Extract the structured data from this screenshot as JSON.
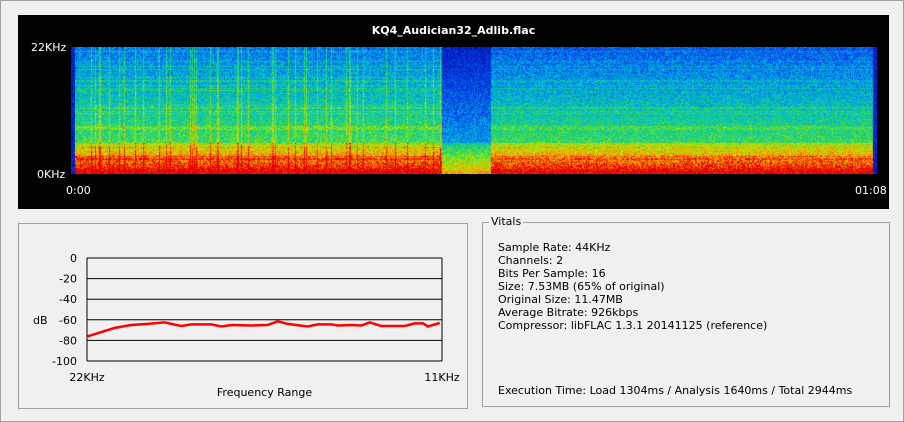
{
  "spectrogram": {
    "title": "KQ4_Audician32_Adlib.flac",
    "y_top_label": "22KHz",
    "y_bottom_label": "0KHz",
    "x_start_label": "0:00",
    "x_end_label": "01:08"
  },
  "chart_data": {
    "type": "line",
    "xlabel": "Frequency Range",
    "ylabel": "dB",
    "x_tick_labels": [
      "22KHz",
      "11KHz"
    ],
    "xlim": [
      22,
      11
    ],
    "ylim": [
      -100,
      0
    ],
    "y_ticks": [
      0,
      -20,
      -40,
      -60,
      -80,
      -100
    ],
    "y_tick_labels": [
      "0",
      "-20",
      "-40",
      "-60",
      "-80",
      "-100"
    ],
    "grid": true,
    "line_color": "#ff0000",
    "series": [
      {
        "x": [
          21.98,
          21.57,
          21.15,
          20.64,
          20.12,
          19.6,
          19.08,
          18.77,
          18.15,
          17.84,
          17.53,
          16.92,
          16.4,
          16.09,
          15.78,
          15.16,
          14.85,
          14.43,
          14.23,
          13.81,
          13.5,
          13.24,
          12.88,
          12.16,
          11.85,
          11.59,
          11.43,
          11.07
        ],
        "y": [
          -76,
          -72,
          -68,
          -65,
          -64,
          -62.5,
          -66,
          -64.5,
          -64.5,
          -66.5,
          -65,
          -65.5,
          -65,
          -61.5,
          -64,
          -66.5,
          -64.5,
          -64.5,
          -65.5,
          -65,
          -65.5,
          -62.5,
          -66,
          -66,
          -63.5,
          -63.5,
          -66.5,
          -63
        ]
      }
    ]
  },
  "vitals": {
    "title": "Vitals",
    "lines": [
      "Sample Rate: 44KHz",
      "Channels: 2",
      "Bits Per Sample: 16",
      "Size: 7.53MB (65% of original)",
      "Original Size: 11.47MB",
      "Average Bitrate: 926kbps",
      "Compressor: libFLAC 1.3.1 20141125 (reference)"
    ],
    "execution_time": "Execution Time: Load 1304ms / Analysis 1640ms / Total 2944ms"
  }
}
